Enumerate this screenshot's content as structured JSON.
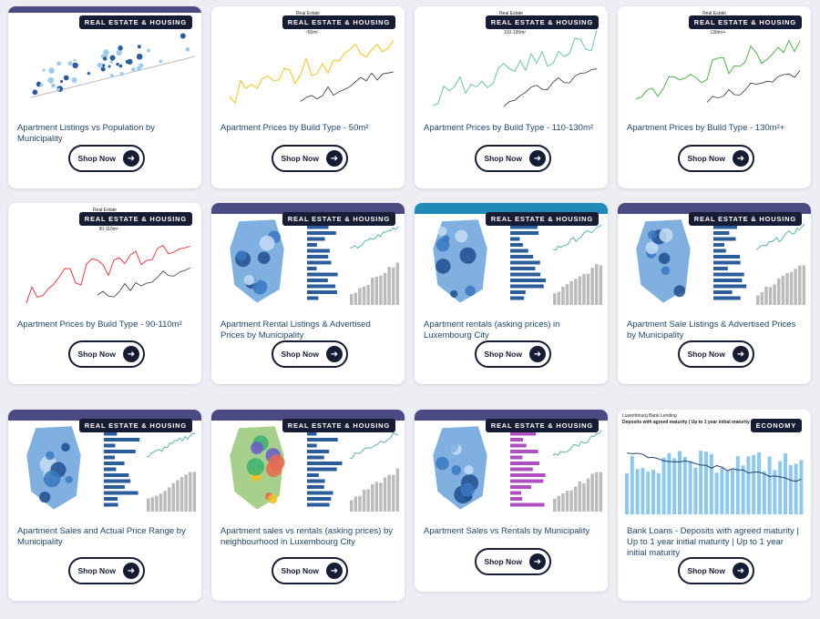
{
  "cards": [
    {
      "badge": "REAL ESTATE & HOUSING",
      "title": "Apartment Listings vs Population by Municipality",
      "button": "Shop Now"
    },
    {
      "badge": "REAL ESTATE & HOUSING",
      "title": "Apartment Prices by Build Type - 50m²",
      "button": "Shop Now",
      "thumb_title": "Real Estate",
      "thumb_sub": "Average price (€/m²)",
      "thumb_size": "~50m²"
    },
    {
      "badge": "REAL ESTATE & HOUSING",
      "title": "Apartment Prices by Build Type - 110-130m²",
      "button": "Shop Now",
      "thumb_title": "Real Estate",
      "thumb_sub": "Average price (€/m²)",
      "thumb_size": "110-130m²"
    },
    {
      "badge": "REAL ESTATE & HOUSING",
      "title": "Apartment Prices by Build Type - 130m²+",
      "button": "Shop Now",
      "thumb_title": "Real Estate",
      "thumb_sub": "Average price (€/m²)",
      "thumb_size": "130m²+"
    },
    {
      "badge": "REAL ESTATE & HOUSING",
      "title": "Apartment Prices by Build Type - 90-110m²",
      "button": "Shop Now",
      "thumb_title": "Real Estate",
      "thumb_sub": "Average price (€/m²)",
      "thumb_size": "90-110m²"
    },
    {
      "badge": "REAL ESTATE & HOUSING",
      "title": "Apartment Rental Listings & Advertised Prices by Municipality",
      "button": "Shop Now"
    },
    {
      "badge": "REAL ESTATE & HOUSING",
      "title": "Apartment rentals (asking prices) in Luxembourg City",
      "button": "Shop Now"
    },
    {
      "badge": "REAL ESTATE & HOUSING",
      "title": "Apartment Sale Listings & Advertised Prices by Municipality",
      "button": "Shop Now"
    },
    {
      "badge": "REAL ESTATE & HOUSING",
      "title": "Apartment Sales and Actual Price Range by Municipality",
      "button": "Shop Now"
    },
    {
      "badge": "REAL ESTATE & HOUSING",
      "title": "Apartment sales vs rentals (asking prices) by neighbourhood in Luxembourg City",
      "button": "Shop Now"
    },
    {
      "badge": "REAL ESTATE & HOUSING",
      "title": "Apartment Sales vs Rentals by Municipality",
      "button": "Shop Now"
    },
    {
      "badge": "ECONOMY",
      "title": "Bank Loans - Deposits with agreed maturity  |  Up to 1 year initial maturity  |  Up to 1 year initial maturity",
      "button": "Shop Now",
      "thumb_title": "Luxembourg Bank Lending",
      "thumb_sub": "Deposits with agreed maturity | Up to 1 year initial maturity | Up to 1 year maturity"
    }
  ]
}
